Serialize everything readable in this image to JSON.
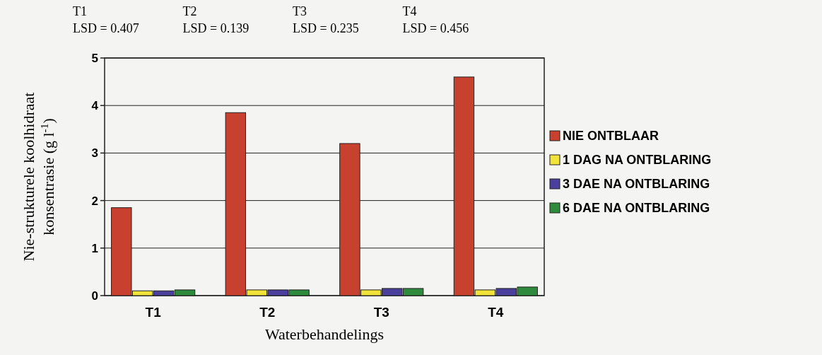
{
  "chart_data": {
    "type": "bar",
    "xlabel": "Waterbehandelings",
    "ylabel": "Nie-strukturele koolhidraat konsentrasie (g l$^{-1}$)",
    "categories": [
      "T1",
      "T2",
      "T3",
      "T4"
    ],
    "series": [
      {
        "name": "NIE ONTBLAAR",
        "color": "#c8412f",
        "values": [
          1.85,
          3.85,
          3.2,
          4.6
        ]
      },
      {
        "name": "1 DAG NA ONTBLARING",
        "color": "#f2e33a",
        "values": [
          0.1,
          0.12,
          0.12,
          0.12
        ]
      },
      {
        "name": "3 DAE NA ONTBLARING",
        "color": "#4b3f9e",
        "values": [
          0.1,
          0.12,
          0.15,
          0.15
        ]
      },
      {
        "name": "6 DAE NA ONTBLARING",
        "color": "#2e8b3e",
        "values": [
          0.12,
          0.12,
          0.15,
          0.18
        ]
      }
    ],
    "ylim": [
      0,
      5
    ],
    "yticks": [
      0,
      1,
      2,
      3,
      4,
      5
    ],
    "grid": "y",
    "legend": "right",
    "annotations": [
      "T1\nLSD = 0.407",
      "T2\nLSD = 0.139",
      "T3\nLSD = 0.235",
      "T4\nLSD = 0.456"
    ]
  }
}
